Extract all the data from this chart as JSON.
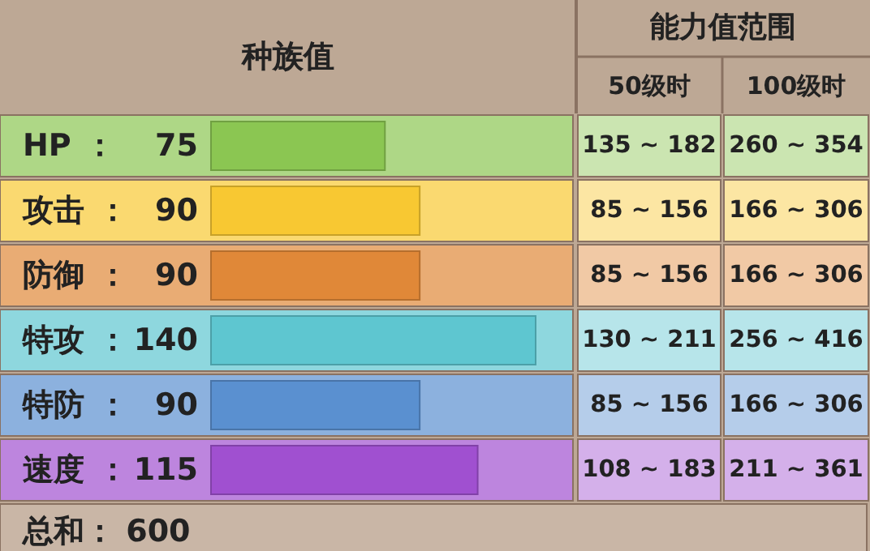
{
  "chart_data": {
    "type": "bar",
    "orientation": "horizontal",
    "title": "种族值",
    "categories": [
      "HP",
      "攻击",
      "防御",
      "特攻",
      "特防",
      "速度"
    ],
    "values": [
      75,
      90,
      90,
      140,
      90,
      115
    ],
    "colors": [
      "#8bc652",
      "#f8c832",
      "#e08838",
      "#5ec6d0",
      "#5a90d0",
      "#a050d0"
    ],
    "data_labels": true,
    "annotations": [
      "能力值范围",
      "50级时",
      "100级时",
      "135 ~ 182",
      "260 ~ 354",
      "85 ~ 156",
      "166 ~ 306",
      "85 ~ 156",
      "166 ~ 306",
      "130 ~ 211",
      "256 ~ 416",
      "85 ~ 156",
      "166 ~ 306",
      "108 ~ 183",
      "211 ~ 361",
      "：",
      "：",
      "：",
      "：",
      "：",
      "：",
      "总和：  600"
    ]
  }
}
